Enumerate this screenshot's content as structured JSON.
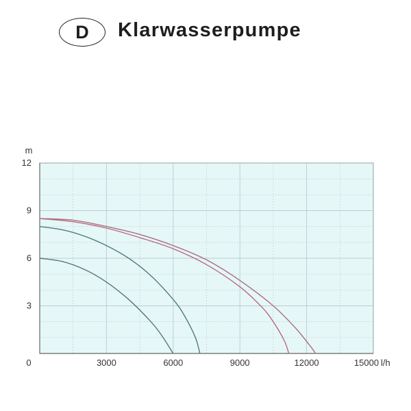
{
  "header": {
    "badge": "D",
    "title": "Klarwasserpumpe"
  },
  "chart_data": {
    "type": "line",
    "title": "Klarwasserpumpe",
    "y_unit": "m",
    "x_unit": "l/h",
    "xlim": [
      0,
      15000
    ],
    "ylim": [
      0,
      12
    ],
    "x_ticks": [
      0,
      3000,
      6000,
      9000,
      12000,
      15000
    ],
    "y_ticks": [
      0,
      3,
      6,
      9,
      12
    ],
    "x_tick_labels": [
      "0",
      "3000",
      "6000",
      "9000",
      "12000",
      "15000"
    ],
    "y_tick_labels": [
      "0",
      "3",
      "6",
      "9",
      "12"
    ],
    "grid": true,
    "background_color": "#e6f7f8",
    "grid_color": "#b9cccd",
    "series": [
      {
        "color": "#5c7574",
        "x": [
          0,
          1000,
          2000,
          3000,
          4000,
          5000,
          5500,
          6000
        ],
        "y": [
          6.0,
          5.8,
          5.3,
          4.5,
          3.4,
          2.0,
          1.1,
          0.0
        ]
      },
      {
        "color": "#4f7e76",
        "x": [
          0,
          1000,
          2000,
          3000,
          4000,
          5000,
          6000,
          6500,
          7000,
          7200
        ],
        "y": [
          8.0,
          7.8,
          7.4,
          6.8,
          6.0,
          4.9,
          3.4,
          2.4,
          1.0,
          0.0
        ]
      },
      {
        "color": "#b8697e",
        "x": [
          0,
          1500,
          3000,
          4500,
          6000,
          7500,
          9000,
          10000,
          10500,
          11000,
          11200
        ],
        "y": [
          8.5,
          8.3,
          7.9,
          7.3,
          6.6,
          5.6,
          4.2,
          2.9,
          2.0,
          0.8,
          0.0
        ]
      },
      {
        "color": "#a86f7f",
        "x": [
          0,
          1500,
          3000,
          4500,
          6000,
          7500,
          9000,
          10500,
          11500,
          12200,
          12400
        ],
        "y": [
          8.5,
          8.4,
          8.0,
          7.5,
          6.8,
          5.9,
          4.6,
          3.0,
          1.6,
          0.4,
          0.0
        ]
      }
    ]
  }
}
